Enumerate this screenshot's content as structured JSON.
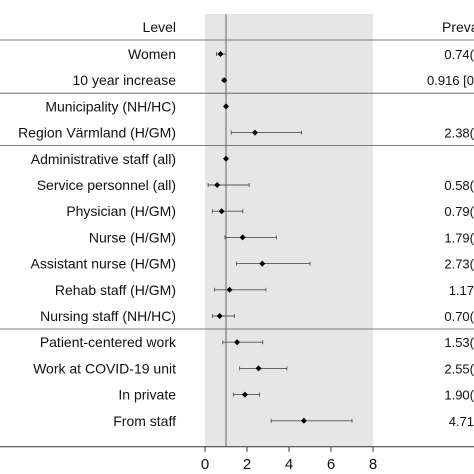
{
  "chart_data": {
    "type": "forest",
    "header": {
      "level": "Level",
      "prevalence": "Preva"
    },
    "xticks": [
      0,
      2,
      4,
      6,
      8
    ],
    "xlim": [
      0,
      8
    ],
    "shade_range": [
      0,
      8
    ],
    "reference_line": 1,
    "rows": [
      {
        "label": "Women",
        "estimate": 0.74,
        "ci": [
          0.55,
          1.0
        ],
        "value_text": "0.74(",
        "group_end": false
      },
      {
        "label": "10 year increase",
        "estimate": 0.916,
        "ci": [
          0.84,
          1.0
        ],
        "value_text": "0.916 [0",
        "group_end": true
      },
      {
        "label": "Municipality (NH/HC)",
        "estimate": 1.0,
        "ci": null,
        "value_text": "",
        "group_end": false
      },
      {
        "label": "Region Värmland (H/GM)",
        "estimate": 2.38,
        "ci": [
          1.25,
          4.6
        ],
        "value_text": "2.38(",
        "group_end": true
      },
      {
        "label": "Administrative staff (all)",
        "estimate": 1.0,
        "ci": null,
        "value_text": "",
        "group_end": false
      },
      {
        "label": "Service personnel (all)",
        "estimate": 0.58,
        "ci": [
          0.15,
          2.1
        ],
        "value_text": "0.58(",
        "group_end": false
      },
      {
        "label": "Physician (H/GM)",
        "estimate": 0.79,
        "ci": [
          0.35,
          1.8
        ],
        "value_text": "0.79(",
        "group_end": false
      },
      {
        "label": "Nurse (H/GM)",
        "estimate": 1.79,
        "ci": [
          0.95,
          3.4
        ],
        "value_text": "1.79(",
        "group_end": false
      },
      {
        "label": "Assistant nurse (H/GM)",
        "estimate": 2.73,
        "ci": [
          1.5,
          5.0
        ],
        "value_text": "2.73(",
        "group_end": false
      },
      {
        "label": "Rehab staff (H/GM)",
        "estimate": 1.17,
        "ci": [
          0.45,
          2.9
        ],
        "value_text": "1.17",
        "group_end": false
      },
      {
        "label": "Nursing staff (NH/HC)",
        "estimate": 0.7,
        "ci": [
          0.35,
          1.4
        ],
        "value_text": "0.70(",
        "group_end": true
      },
      {
        "label": "Patient-centered work",
        "estimate": 1.53,
        "ci": [
          0.85,
          2.75
        ],
        "value_text": "1.53(",
        "group_end": false
      },
      {
        "label": "Work at COVID-19 unit",
        "estimate": 2.55,
        "ci": [
          1.65,
          3.9
        ],
        "value_text": "2.55(",
        "group_end": false
      },
      {
        "label": "In private",
        "estimate": 1.9,
        "ci": [
          1.35,
          2.6
        ],
        "value_text": "1.90(",
        "group_end": false
      },
      {
        "label": "From staff",
        "estimate": 4.71,
        "ci": [
          3.15,
          7.0
        ],
        "value_text": "4.71",
        "group_end": false
      }
    ]
  }
}
